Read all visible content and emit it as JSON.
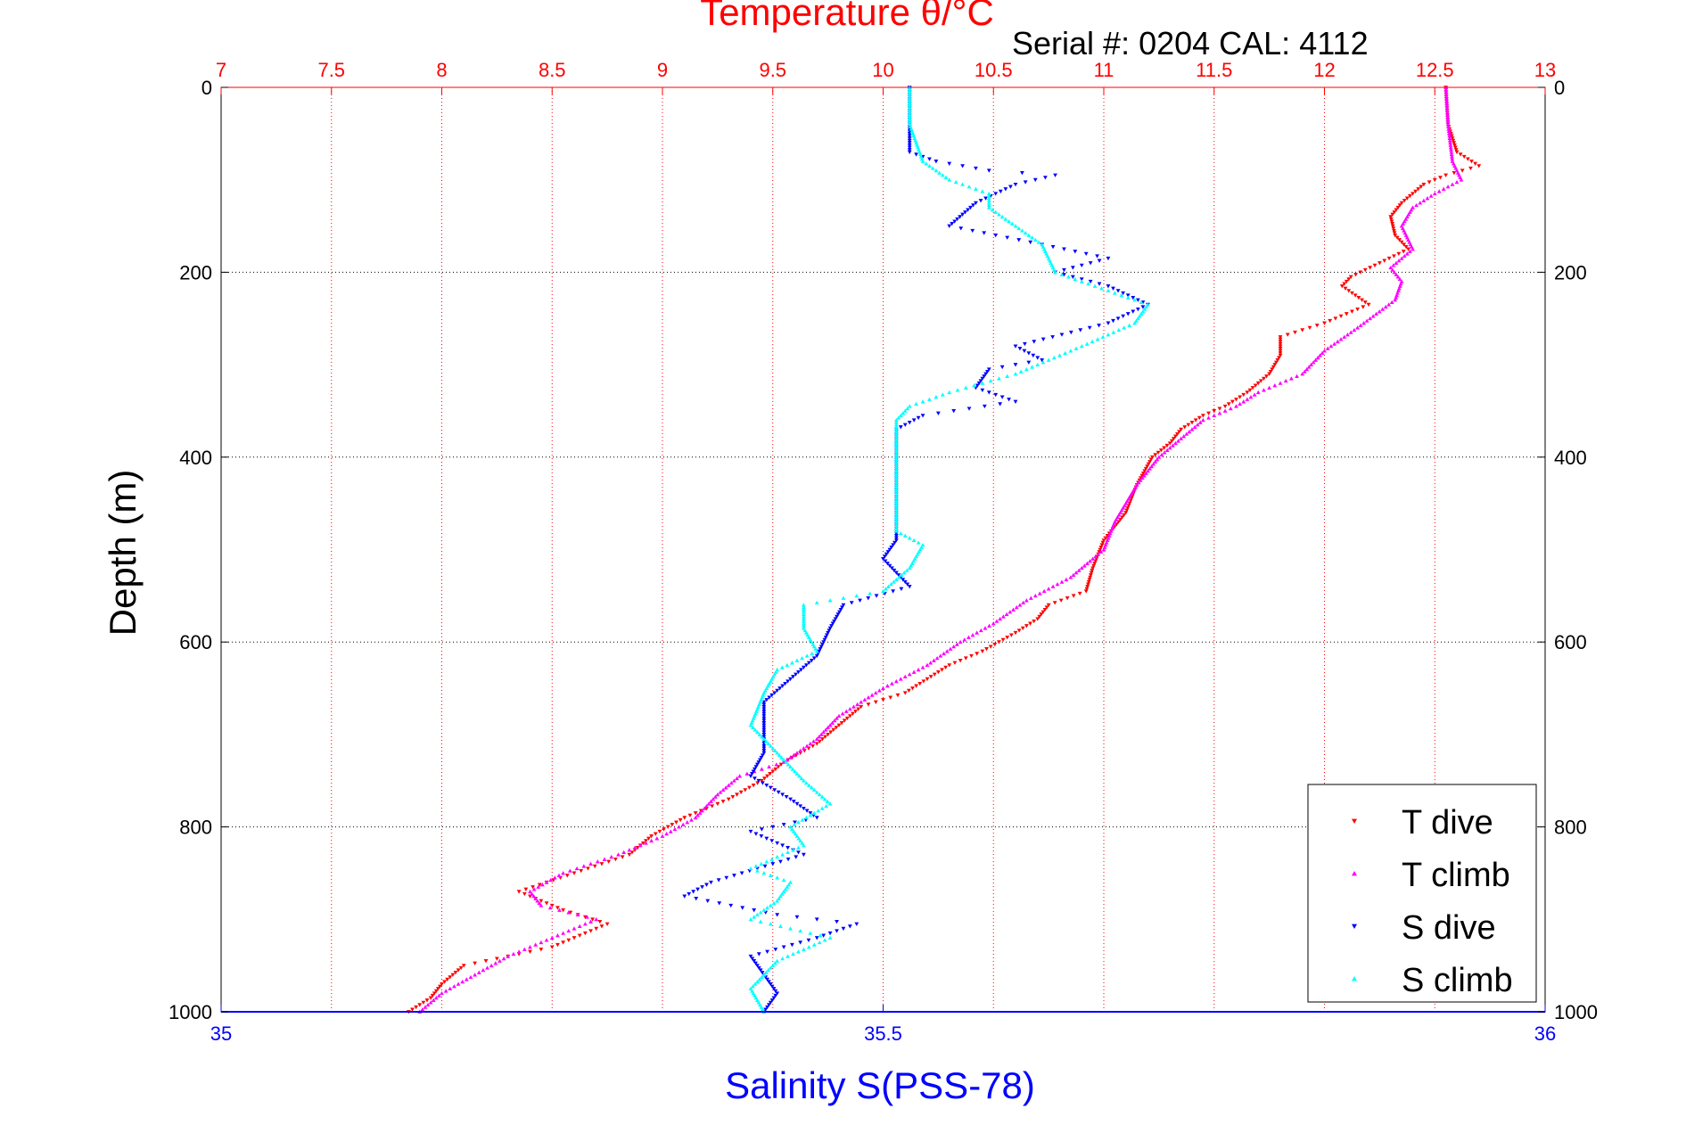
{
  "chart_data": {
    "type": "scatter",
    "title": "Temperature θ/°C",
    "subtitle": "Serial #: 0204  CAL: 4112",
    "ylabel": "Depth (m)",
    "xlabel": "Salinity S(PSS-78)",
    "ylim": [
      0,
      1000
    ],
    "y_reversed": true,
    "y_ticks": [
      "0",
      "200",
      "400",
      "600",
      "800",
      "1000"
    ],
    "y_tick_values": [
      0,
      200,
      400,
      600,
      800,
      1000
    ],
    "top_axis": {
      "quantity": "temperature",
      "range": [
        7,
        13
      ],
      "ticks": [
        "7",
        "7.5",
        "8",
        "8.5",
        "9",
        "9.5",
        "10",
        "10.5",
        "11",
        "11.5",
        "12",
        "12.5",
        "13"
      ],
      "tick_values": [
        7,
        7.5,
        8,
        8.5,
        9,
        9.5,
        10,
        10.5,
        11,
        11.5,
        12,
        12.5,
        13
      ]
    },
    "bottom_axis": {
      "quantity": "salinity",
      "range": [
        35,
        36
      ],
      "ticks": [
        "35",
        "35.5",
        "36"
      ],
      "tick_values": [
        35,
        35.5,
        36
      ]
    },
    "grid": true,
    "legend_position": "bottom-right",
    "series": [
      {
        "name": "T dive",
        "axis": "temperature",
        "color": "#ff0000",
        "marker": "triangle-down",
        "points": [
          [
            0,
            12.55
          ],
          [
            40,
            12.56
          ],
          [
            70,
            12.6
          ],
          [
            85,
            12.7
          ],
          [
            95,
            12.55
          ],
          [
            105,
            12.45
          ],
          [
            125,
            12.35
          ],
          [
            140,
            12.3
          ],
          [
            160,
            12.32
          ],
          [
            175,
            12.38
          ],
          [
            190,
            12.25
          ],
          [
            205,
            12.12
          ],
          [
            215,
            12.08
          ],
          [
            235,
            12.2
          ],
          [
            255,
            12.0
          ],
          [
            270,
            11.8
          ],
          [
            290,
            11.8
          ],
          [
            310,
            11.75
          ],
          [
            330,
            11.65
          ],
          [
            345,
            11.55
          ],
          [
            355,
            11.45
          ],
          [
            370,
            11.35
          ],
          [
            385,
            11.3
          ],
          [
            400,
            11.22
          ],
          [
            430,
            11.15
          ],
          [
            460,
            11.1
          ],
          [
            490,
            11.0
          ],
          [
            520,
            10.95
          ],
          [
            545,
            10.92
          ],
          [
            560,
            10.75
          ],
          [
            575,
            10.7
          ],
          [
            590,
            10.6
          ],
          [
            610,
            10.45
          ],
          [
            625,
            10.3
          ],
          [
            640,
            10.2
          ],
          [
            655,
            10.1
          ],
          [
            670,
            9.9
          ],
          [
            690,
            9.8
          ],
          [
            710,
            9.7
          ],
          [
            730,
            9.55
          ],
          [
            750,
            9.45
          ],
          [
            770,
            9.3
          ],
          [
            790,
            9.1
          ],
          [
            810,
            8.95
          ],
          [
            830,
            8.85
          ],
          [
            850,
            8.6
          ],
          [
            870,
            8.35
          ],
          [
            890,
            8.55
          ],
          [
            905,
            8.75
          ],
          [
            930,
            8.5
          ],
          [
            950,
            8.1
          ],
          [
            970,
            8.0
          ],
          [
            985,
            7.95
          ],
          [
            1000,
            7.85
          ]
        ]
      },
      {
        "name": "T climb",
        "axis": "temperature",
        "color": "#ff00ff",
        "marker": "triangle-up",
        "points": [
          [
            0,
            12.55
          ],
          [
            40,
            12.56
          ],
          [
            80,
            12.58
          ],
          [
            100,
            12.62
          ],
          [
            115,
            12.5
          ],
          [
            130,
            12.4
          ],
          [
            150,
            12.35
          ],
          [
            175,
            12.4
          ],
          [
            195,
            12.3
          ],
          [
            210,
            12.35
          ],
          [
            230,
            12.32
          ],
          [
            260,
            12.15
          ],
          [
            285,
            12.0
          ],
          [
            310,
            11.9
          ],
          [
            330,
            11.7
          ],
          [
            345,
            11.6
          ],
          [
            360,
            11.45
          ],
          [
            380,
            11.35
          ],
          [
            400,
            11.25
          ],
          [
            430,
            11.15
          ],
          [
            470,
            11.05
          ],
          [
            500,
            11.0
          ],
          [
            530,
            10.85
          ],
          [
            555,
            10.65
          ],
          [
            580,
            10.5
          ],
          [
            600,
            10.35
          ],
          [
            625,
            10.2
          ],
          [
            650,
            10.0
          ],
          [
            680,
            9.8
          ],
          [
            705,
            9.7
          ],
          [
            730,
            9.55
          ],
          [
            745,
            9.35
          ],
          [
            765,
            9.25
          ],
          [
            790,
            9.15
          ],
          [
            810,
            9.0
          ],
          [
            830,
            8.8
          ],
          [
            850,
            8.55
          ],
          [
            870,
            8.4
          ],
          [
            885,
            8.45
          ],
          [
            900,
            8.7
          ],
          [
            920,
            8.5
          ],
          [
            940,
            8.3
          ],
          [
            960,
            8.15
          ],
          [
            980,
            8.0
          ],
          [
            1000,
            7.9
          ]
        ]
      },
      {
        "name": "S dive",
        "axis": "salinity",
        "color": "#0000ff",
        "marker": "triangle-down",
        "points": [
          [
            0,
            35.52
          ],
          [
            40,
            35.52
          ],
          [
            70,
            35.52
          ],
          [
            80,
            35.54
          ],
          [
            90,
            35.58
          ],
          [
            95,
            35.63
          ],
          [
            105,
            35.6
          ],
          [
            125,
            35.57
          ],
          [
            150,
            35.55
          ],
          [
            170,
            35.62
          ],
          [
            185,
            35.67
          ],
          [
            200,
            35.63
          ],
          [
            215,
            35.67
          ],
          [
            235,
            35.7
          ],
          [
            255,
            35.67
          ],
          [
            280,
            35.6
          ],
          [
            295,
            35.62
          ],
          [
            305,
            35.58
          ],
          [
            325,
            35.57
          ],
          [
            340,
            35.6
          ],
          [
            355,
            35.53
          ],
          [
            370,
            35.51
          ],
          [
            400,
            35.51
          ],
          [
            430,
            35.51
          ],
          [
            460,
            35.51
          ],
          [
            490,
            35.51
          ],
          [
            510,
            35.5
          ],
          [
            540,
            35.52
          ],
          [
            560,
            35.47
          ],
          [
            585,
            35.46
          ],
          [
            615,
            35.45
          ],
          [
            640,
            35.43
          ],
          [
            665,
            35.41
          ],
          [
            690,
            35.41
          ],
          [
            720,
            35.41
          ],
          [
            745,
            35.4
          ],
          [
            770,
            35.43
          ],
          [
            790,
            35.45
          ],
          [
            805,
            35.4
          ],
          [
            830,
            35.44
          ],
          [
            860,
            35.37
          ],
          [
            875,
            35.35
          ],
          [
            895,
            35.42
          ],
          [
            905,
            35.48
          ],
          [
            920,
            35.45
          ],
          [
            940,
            35.4
          ],
          [
            960,
            35.41
          ],
          [
            980,
            35.42
          ],
          [
            1000,
            35.41
          ]
        ]
      },
      {
        "name": "S climb",
        "axis": "salinity",
        "color": "#00ffff",
        "marker": "triangle-up",
        "points": [
          [
            0,
            35.52
          ],
          [
            40,
            35.52
          ],
          [
            80,
            35.53
          ],
          [
            100,
            35.55
          ],
          [
            115,
            35.58
          ],
          [
            130,
            35.58
          ],
          [
            150,
            35.6
          ],
          [
            170,
            35.62
          ],
          [
            200,
            35.63
          ],
          [
            220,
            35.67
          ],
          [
            235,
            35.7
          ],
          [
            255,
            35.69
          ],
          [
            280,
            35.65
          ],
          [
            310,
            35.6
          ],
          [
            330,
            35.55
          ],
          [
            345,
            35.52
          ],
          [
            360,
            35.51
          ],
          [
            380,
            35.51
          ],
          [
            400,
            35.51
          ],
          [
            440,
            35.51
          ],
          [
            480,
            35.51
          ],
          [
            495,
            35.53
          ],
          [
            520,
            35.52
          ],
          [
            545,
            35.5
          ],
          [
            560,
            35.44
          ],
          [
            585,
            35.44
          ],
          [
            610,
            35.45
          ],
          [
            630,
            35.42
          ],
          [
            655,
            35.41
          ],
          [
            690,
            35.4
          ],
          [
            720,
            35.42
          ],
          [
            750,
            35.44
          ],
          [
            775,
            35.46
          ],
          [
            800,
            35.43
          ],
          [
            820,
            35.44
          ],
          [
            845,
            35.4
          ],
          [
            860,
            35.43
          ],
          [
            880,
            35.42
          ],
          [
            900,
            35.4
          ],
          [
            920,
            35.46
          ],
          [
            945,
            35.42
          ],
          [
            975,
            35.4
          ],
          [
            1000,
            35.41
          ]
        ]
      }
    ]
  }
}
